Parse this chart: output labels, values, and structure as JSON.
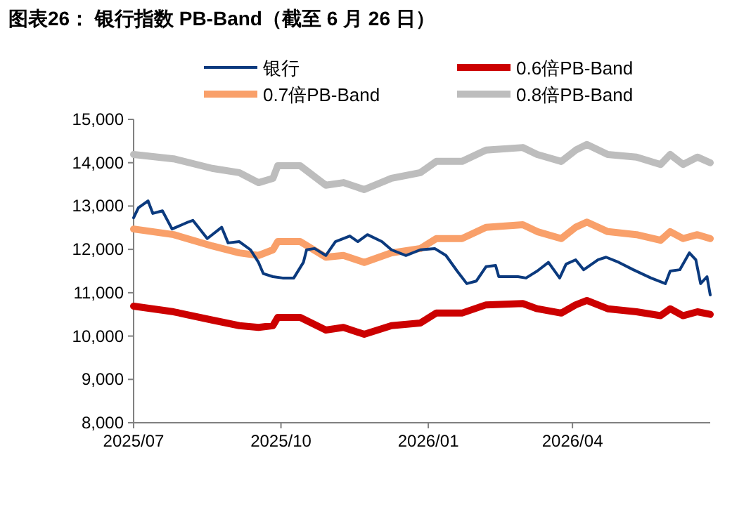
{
  "chart_data": {
    "type": "line",
    "title": "图表26：  银行指数 PB-Band（截至 6 月 26 日）",
    "series": [
      {
        "name": "银行",
        "color": "#0b3a7e",
        "x": [
          "2025-07-01",
          "2025-07-04",
          "2025-07-10",
          "2025-07-13",
          "2025-07-19",
          "2025-07-25",
          "2025-08-04",
          "2025-08-07",
          "2025-08-16",
          "2025-08-25",
          "2025-08-29",
          "2025-09-05",
          "2025-09-12",
          "2025-09-17",
          "2025-09-20",
          "2025-09-26",
          "2025-10-02",
          "2025-10-09",
          "2025-10-15",
          "2025-10-17",
          "2025-10-22",
          "2025-10-29",
          "2025-11-04",
          "2025-11-13",
          "2025-11-18",
          "2025-11-24",
          "2025-12-03",
          "2025-12-09",
          "2025-12-18",
          "2025-12-27",
          "2026-01-05",
          "2026-01-12",
          "2026-01-19",
          "2026-01-25",
          "2026-01-31",
          "2026-02-06",
          "2026-02-12",
          "2026-02-14",
          "2026-02-26",
          "2026-03-03",
          "2026-03-10",
          "2026-03-17",
          "2026-03-24",
          "2026-03-28",
          "2026-04-03",
          "2026-04-08",
          "2026-04-17",
          "2026-04-22",
          "2026-04-30",
          "2026-05-09",
          "2026-05-20",
          "2026-05-29",
          "2026-06-01",
          "2026-06-07",
          "2026-06-13",
          "2026-06-17",
          "2026-06-20",
          "2026-06-24",
          "2026-06-26"
        ],
        "values": [
          12730,
          12960,
          13120,
          12830,
          12890,
          12470,
          12630,
          12670,
          12250,
          12510,
          12150,
          12180,
          11990,
          11700,
          11440,
          11370,
          11340,
          11340,
          11700,
          11990,
          12020,
          11860,
          12180,
          12310,
          12180,
          12340,
          12180,
          11990,
          11860,
          11990,
          12020,
          11860,
          11500,
          11210,
          11270,
          11600,
          11630,
          11370,
          11370,
          11340,
          11500,
          11700,
          11340,
          11660,
          11760,
          11530,
          11760,
          11820,
          11700,
          11530,
          11340,
          11210,
          11500,
          11530,
          11920,
          11760,
          11210,
          11370,
          10950
        ]
      },
      {
        "name": "0.6倍PB-Band",
        "color": "#cc0000",
        "x": [
          "2025-07-01",
          "2025-07-26",
          "2025-08-19",
          "2025-09-05",
          "2025-09-17",
          "2025-09-26",
          "2025-09-29",
          "2025-10-13",
          "2025-10-29",
          "2025-11-09",
          "2025-11-22",
          "2025-12-09",
          "2025-12-27",
          "2026-01-06",
          "2026-01-22",
          "2026-02-06",
          "2026-03-01",
          "2026-03-10",
          "2026-03-25",
          "2026-04-03",
          "2026-04-10",
          "2026-04-23",
          "2026-05-11",
          "2026-05-26",
          "2026-06-01",
          "2026-06-09",
          "2026-06-18",
          "2026-06-26"
        ],
        "values": [
          10690,
          10560,
          10370,
          10240,
          10200,
          10240,
          10430,
          10430,
          10140,
          10200,
          10040,
          10240,
          10300,
          10530,
          10530,
          10720,
          10750,
          10630,
          10530,
          10720,
          10820,
          10630,
          10560,
          10470,
          10630,
          10470,
          10560,
          10500
        ]
      },
      {
        "name": "0.7倍PB-Band",
        "color": "#f9a06a",
        "x": [
          "2025-07-01",
          "2025-07-26",
          "2025-08-19",
          "2025-09-05",
          "2025-09-17",
          "2025-09-26",
          "2025-09-29",
          "2025-10-13",
          "2025-10-29",
          "2025-11-09",
          "2025-11-22",
          "2025-12-09",
          "2025-12-27",
          "2026-01-06",
          "2026-01-22",
          "2026-02-06",
          "2026-03-01",
          "2026-03-10",
          "2026-03-25",
          "2026-04-03",
          "2026-04-10",
          "2026-04-23",
          "2026-05-11",
          "2026-05-26",
          "2026-06-01",
          "2026-06-09",
          "2026-06-18",
          "2026-06-26"
        ],
        "values": [
          12470,
          12340,
          12080,
          11920,
          11860,
          11990,
          12180,
          12180,
          11820,
          11860,
          11700,
          11920,
          12020,
          12250,
          12250,
          12510,
          12570,
          12410,
          12250,
          12510,
          12630,
          12410,
          12340,
          12210,
          12410,
          12250,
          12340,
          12250
        ]
      },
      {
        "name": "0.8倍PB-Band",
        "color": "#bdbdbd",
        "x": [
          "2025-07-01",
          "2025-07-26",
          "2025-08-19",
          "2025-09-05",
          "2025-09-17",
          "2025-09-26",
          "2025-09-29",
          "2025-10-13",
          "2025-10-29",
          "2025-11-09",
          "2025-11-22",
          "2025-12-09",
          "2025-12-27",
          "2026-01-06",
          "2026-01-22",
          "2026-02-06",
          "2026-03-01",
          "2026-03-10",
          "2026-03-25",
          "2026-04-03",
          "2026-04-10",
          "2026-04-23",
          "2026-05-11",
          "2026-05-26",
          "2026-06-01",
          "2026-06-09",
          "2026-06-18",
          "2026-06-26"
        ],
        "values": [
          14190,
          14090,
          13870,
          13770,
          13540,
          13640,
          13930,
          13930,
          13480,
          13540,
          13380,
          13640,
          13770,
          14030,
          14030,
          14290,
          14350,
          14190,
          14030,
          14290,
          14420,
          14190,
          14130,
          13960,
          14190,
          13960,
          14130,
          14000
        ]
      }
    ],
    "xlim": [
      "2025-07-01",
      "2026-06-26"
    ],
    "xticks": [
      {
        "value": "2025-07-01",
        "label": "2025/07"
      },
      {
        "value": "2025-10-01",
        "label": "2025/10"
      },
      {
        "value": "2026-01-01",
        "label": "2026/01"
      },
      {
        "value": "2026-04-01",
        "label": "2026/04"
      }
    ],
    "ylim": [
      8000,
      15000
    ],
    "yticks": [
      {
        "value": 8000,
        "label": "8,000"
      },
      {
        "value": 9000,
        "label": "9,000"
      },
      {
        "value": 10000,
        "label": "10,000"
      },
      {
        "value": 11000,
        "label": "11,000"
      },
      {
        "value": 12000,
        "label": "12,000"
      },
      {
        "value": 13000,
        "label": "13,000"
      },
      {
        "value": 14000,
        "label": "14,000"
      },
      {
        "value": 15000,
        "label": "15,000"
      }
    ],
    "legend": "top",
    "grid": false
  }
}
